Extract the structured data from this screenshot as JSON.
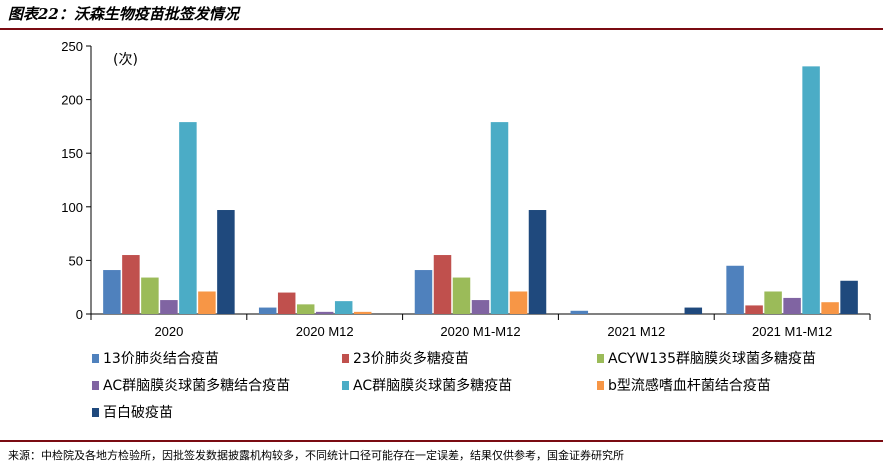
{
  "title": "图表22：沃森生物疫苗批签发情况",
  "source": "来源：中检院及各地方检验所，因批签发数据披露机构较多，不同统计口径可能存在一定误差，结果仅供参考，国金证券研究所",
  "chart_data": {
    "type": "bar",
    "title": "",
    "xlabel": "",
    "ylabel": "(次)",
    "ylim": [
      0,
      250
    ],
    "yticks": [
      0,
      50,
      100,
      150,
      200,
      250
    ],
    "grid": false,
    "legend_position": "bottom",
    "categories": [
      "2020",
      "2020 M12",
      "2020 M1-M12",
      "2021 M12",
      "2021 M1-M12"
    ],
    "series": [
      {
        "name": "13价肺炎结合疫苗",
        "color": "#4f81bd",
        "values": [
          41,
          6,
          41,
          3,
          45
        ]
      },
      {
        "name": "23价肺炎多糖疫苗",
        "color": "#c0504d",
        "values": [
          55,
          20,
          55,
          0,
          8
        ]
      },
      {
        "name": "ACYW135群脑膜炎球菌多糖疫苗",
        "color": "#9bbb59",
        "values": [
          34,
          9,
          34,
          0,
          21
        ]
      },
      {
        "name": "AC群脑膜炎球菌多糖结合疫苗",
        "color": "#8064a2",
        "values": [
          13,
          2,
          13,
          0,
          15
        ]
      },
      {
        "name": "AC群脑膜炎球菌多糖疫苗",
        "color": "#4bacc6",
        "values": [
          179,
          12,
          179,
          0,
          231
        ]
      },
      {
        "name": "b型流感嗜血杆菌结合疫苗",
        "color": "#f79646",
        "values": [
          21,
          2,
          21,
          0,
          11
        ]
      },
      {
        "name": "百白破疫苗",
        "color": "#1f497d",
        "values": [
          97,
          0,
          97,
          6,
          31
        ]
      }
    ]
  }
}
